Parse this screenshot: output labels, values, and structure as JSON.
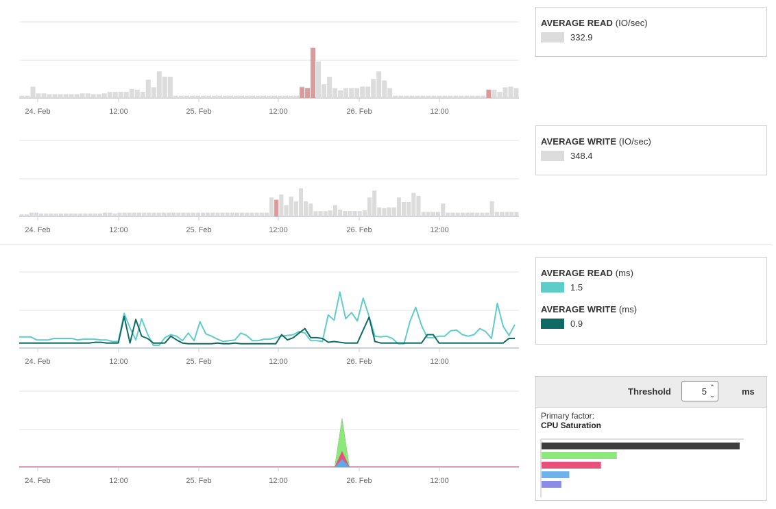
{
  "chart_data": [
    {
      "type": "bar",
      "x_ticks": [
        "24. Feb",
        "12:00",
        "25. Feb",
        "12:00",
        "26. Feb",
        "12:00"
      ],
      "series": [
        {
          "values": [
            3,
            3,
            15,
            6,
            6,
            5,
            5,
            5,
            5,
            5,
            5,
            6,
            6,
            5,
            5,
            6,
            8,
            8,
            8,
            8,
            12,
            11,
            8,
            24,
            14,
            35,
            28,
            28,
            3,
            3,
            3,
            3,
            3,
            3,
            3,
            3,
            3,
            3,
            3,
            3,
            3,
            3,
            3,
            3,
            3,
            3,
            3,
            3,
            3,
            3,
            3,
            15,
            13,
            66,
            48,
            18,
            28,
            13,
            10,
            13,
            13,
            13,
            15,
            15,
            25,
            35,
            23,
            13,
            3,
            3,
            3,
            3,
            3,
            3,
            3,
            3,
            3,
            3,
            3,
            3,
            3,
            3,
            3,
            3,
            3,
            3,
            11,
            8,
            14,
            15,
            13
          ]
        },
        {
          "values": [
            0,
            0,
            0,
            0,
            0,
            0,
            0,
            0,
            0,
            0,
            0,
            0,
            0,
            0,
            0,
            0,
            0,
            0,
            0,
            0,
            0,
            0,
            0,
            0,
            0,
            0,
            0,
            0,
            0,
            0,
            0,
            0,
            0,
            0,
            0,
            0,
            0,
            0,
            0,
            0,
            0,
            0,
            0,
            0,
            0,
            0,
            0,
            0,
            0,
            0,
            0,
            14,
            13,
            66,
            0,
            0,
            0,
            0,
            0,
            0,
            0,
            0,
            0,
            0,
            0,
            0,
            0,
            0,
            0,
            0,
            0,
            0,
            0,
            0,
            0,
            0,
            0,
            0,
            0,
            0,
            0,
            0,
            0,
            0,
            0,
            11,
            0,
            0,
            0,
            0,
            0
          ]
        }
      ],
      "ylim": [
        0,
        100
      ]
    },
    {
      "type": "bar",
      "x_ticks": [
        "24. Feb",
        "12:00",
        "25. Feb",
        "12:00",
        "26. Feb",
        "12:00"
      ],
      "series": [
        {
          "values": [
            3,
            3,
            5,
            5,
            4,
            4,
            4,
            4,
            4,
            4,
            4,
            4,
            4,
            4,
            4,
            4,
            4,
            5,
            5,
            4,
            5,
            5,
            5,
            5,
            5,
            5,
            5,
            5,
            5,
            5,
            5,
            5,
            5,
            5,
            5,
            5,
            5,
            5,
            5,
            5,
            5,
            5,
            5,
            5,
            5,
            5,
            5,
            5,
            5,
            5,
            5,
            25,
            22,
            29,
            15,
            26,
            20,
            37,
            20,
            17,
            7,
            7,
            7,
            8,
            15,
            9,
            7,
            7,
            7,
            7,
            8,
            25,
            34,
            12,
            11,
            12,
            12,
            25,
            19,
            19,
            31,
            27,
            6,
            6,
            6,
            6,
            17,
            5,
            5,
            5,
            5,
            5,
            5,
            5,
            5,
            5,
            20,
            6,
            6,
            6,
            6,
            6
          ]
        },
        {
          "values": [
            0,
            0,
            0,
            0,
            0,
            0,
            0,
            0,
            0,
            0,
            0,
            0,
            0,
            0,
            0,
            0,
            0,
            0,
            0,
            0,
            0,
            0,
            0,
            0,
            0,
            0,
            0,
            0,
            0,
            0,
            0,
            0,
            0,
            0,
            0,
            0,
            0,
            0,
            0,
            0,
            0,
            0,
            0,
            0,
            0,
            0,
            0,
            0,
            0,
            0,
            0,
            0,
            22,
            0,
            0,
            0,
            0,
            0,
            0,
            0,
            0,
            0,
            0,
            0,
            0,
            0,
            0,
            0,
            0,
            0,
            0,
            0,
            0,
            0,
            0,
            0,
            0,
            0,
            0,
            0,
            0,
            0,
            0,
            0,
            0,
            0,
            0,
            0,
            0,
            0,
            0,
            0,
            0,
            0,
            0,
            0,
            0,
            0,
            0,
            0,
            0,
            0
          ]
        }
      ],
      "ylim": [
        0,
        100
      ]
    },
    {
      "type": "line",
      "x_ticks": [
        "24. Feb",
        "12:00",
        "25. Feb",
        "12:00",
        "26. Feb",
        "12:00"
      ],
      "series": [
        {
          "name": "AVERAGE READ",
          "color": "#5ecdc9",
          "values": [
            11,
            11,
            11,
            7,
            7,
            7,
            9,
            9,
            9,
            9,
            7,
            8,
            8,
            8,
            7,
            7,
            5,
            5,
            42,
            23,
            7,
            35,
            15,
            0,
            0,
            10,
            14,
            12,
            6,
            16,
            6,
            31,
            15,
            12,
            8,
            5,
            6,
            7,
            16,
            13,
            6,
            6,
            8,
            8,
            10,
            12,
            13,
            14,
            18,
            16,
            6,
            6,
            5,
            40,
            33,
            70,
            35,
            43,
            32,
            62,
            38,
            12,
            11,
            12,
            9,
            2,
            2,
            31,
            50,
            26,
            10,
            10,
            12,
            12,
            19,
            20,
            14,
            12,
            14,
            22,
            18,
            9,
            55,
            25,
            13,
            27
          ]
        },
        {
          "name": "AVERAGE WRITE",
          "color": "#0e6b63",
          "values": [
            3,
            3,
            3,
            3,
            3,
            3,
            3,
            3,
            3,
            3,
            3,
            3,
            3,
            4,
            4,
            3,
            3,
            3,
            38,
            3,
            34,
            12,
            9,
            3,
            3,
            3,
            12,
            7,
            3,
            2,
            2,
            2,
            2,
            2,
            3,
            2,
            2,
            3,
            2,
            2,
            2,
            2,
            2,
            2,
            2,
            14,
            7,
            10,
            16,
            22,
            10,
            10,
            9,
            4,
            5,
            4,
            3,
            3,
            3,
            20,
            37,
            5,
            3,
            3,
            3,
            3,
            3,
            3,
            3,
            3,
            14,
            14,
            3,
            3,
            3,
            3,
            3,
            3,
            3,
            3,
            3,
            3,
            3,
            3,
            9,
            9
          ]
        }
      ],
      "ylim": [
        0,
        100
      ]
    },
    {
      "type": "area",
      "x_ticks": [
        "24. Feb",
        "12:00",
        "25. Feb",
        "12:00",
        "26. Feb",
        "12:00"
      ],
      "series": [
        {
          "color": "#3d3d3d",
          "peak": 30
        },
        {
          "color": "#8de87c",
          "peak": 12
        },
        {
          "color": "#e8517c",
          "peak": 4
        },
        {
          "color": "#5ea9e6",
          "peak": 2
        }
      ],
      "ylim": [
        0,
        60
      ]
    }
  ],
  "panels": {
    "read_iops": {
      "title": "AVERAGE READ",
      "unit": "(IO/sec)",
      "value": "332.9",
      "color": "#dcdcdc"
    },
    "write_iops": {
      "title": "AVERAGE WRITE",
      "unit": "(IO/sec)",
      "value": "348.4",
      "color": "#dcdcdc"
    },
    "read_ms": {
      "title": "AVERAGE READ",
      "unit": "(ms)",
      "value": "1.5",
      "color": "#5ecdc9"
    },
    "write_ms": {
      "title": "AVERAGE WRITE",
      "unit": "(ms)",
      "value": "0.9",
      "color": "#0e6b63"
    }
  },
  "threshold": {
    "label": "Threshold",
    "value": "5",
    "unit": "ms"
  },
  "primary_factor": {
    "label": "Primary factor:",
    "value": "CPU Saturation",
    "bars": [
      {
        "color": "#3d3d3d",
        "value": 100
      },
      {
        "color": "#8de87c",
        "value": 38
      },
      {
        "color": "#e8517c",
        "value": 30
      },
      {
        "color": "#6fb1ea",
        "value": 14
      },
      {
        "color": "#8a8ce8",
        "value": 10
      }
    ]
  }
}
